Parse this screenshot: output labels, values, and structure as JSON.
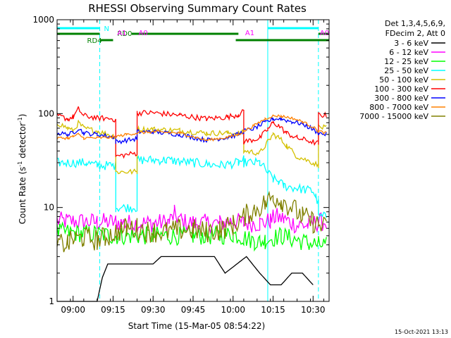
{
  "chart_data": {
    "type": "line",
    "title": "RHESSI Observing Summary Count Rates",
    "xlabel": "Start Time (15-Mar-05 08:54:22)",
    "ylabel_main": "Count Rate (s",
    "ylabel_sup1": "-1",
    "ylabel_mid": " detector",
    "ylabel_sup2": "-1",
    "ylabel_end": ")",
    "y_scale": "log",
    "ylim": [
      1,
      1000
    ],
    "xlim_minutes": [
      -6,
      96
    ],
    "x_ticks": [
      {
        "t": 0,
        "label": "09:00"
      },
      {
        "t": 15,
        "label": "09:15"
      },
      {
        "t": 30,
        "label": "09:30"
      },
      {
        "t": 45,
        "label": "09:45"
      },
      {
        "t": 60,
        "label": "10:00"
      },
      {
        "t": 75,
        "label": "10:15"
      },
      {
        "t": 90,
        "label": "10:30"
      }
    ],
    "y_ticks": [
      {
        "v": 1,
        "label": "1"
      },
      {
        "v": 10,
        "label": "10"
      },
      {
        "v": 100,
        "label": "100"
      },
      {
        "v": 1000,
        "label": "1000"
      }
    ],
    "legend_header": [
      "Det 1,3,4,5,6,9,",
      "FDecim 2, Att 0"
    ],
    "legend_placement": "right",
    "grid": false,
    "series": [
      {
        "name": "3 - 6 keV",
        "color": "#000000",
        "points": [
          [
            -6,
            1
          ],
          [
            9,
            1
          ],
          [
            11,
            1.8
          ],
          [
            13,
            2.5
          ],
          [
            17,
            2.5
          ],
          [
            30,
            2.5
          ],
          [
            33,
            3
          ],
          [
            45,
            3
          ],
          [
            53,
            3
          ],
          [
            57,
            2
          ],
          [
            65,
            3
          ],
          [
            70,
            2
          ],
          [
            74,
            1.5
          ],
          [
            78,
            1.5
          ],
          [
            82,
            2
          ],
          [
            86,
            2
          ],
          [
            90,
            1.5
          ]
        ]
      },
      {
        "name": "6 - 12 keV",
        "color": "#ff00ff",
        "points": [
          [
            -6,
            7.2
          ],
          [
            9,
            7
          ],
          [
            16,
            7
          ],
          [
            20,
            6.8
          ],
          [
            30,
            6.8
          ],
          [
            36,
            7
          ],
          [
            38,
            8.5
          ],
          [
            41,
            7
          ],
          [
            46,
            6.8
          ],
          [
            55,
            6.8
          ],
          [
            60,
            7.2
          ],
          [
            64,
            6.8
          ],
          [
            70,
            6.8
          ],
          [
            74,
            7.2
          ],
          [
            76,
            8
          ],
          [
            79,
            7.5
          ],
          [
            84,
            6.5
          ],
          [
            88,
            6.5
          ],
          [
            92,
            7
          ],
          [
            95,
            7
          ]
        ]
      },
      {
        "name": "12 - 25 keV",
        "color": "#00ff00",
        "points": [
          [
            -6,
            5.5
          ],
          [
            9,
            5.2
          ],
          [
            16,
            5
          ],
          [
            20,
            5
          ],
          [
            30,
            5
          ],
          [
            45,
            5
          ],
          [
            55,
            5
          ],
          [
            60,
            5.2
          ],
          [
            64,
            4.8
          ],
          [
            68,
            4.4
          ],
          [
            70,
            4.3
          ],
          [
            72,
            4.5
          ],
          [
            78,
            5
          ],
          [
            84,
            4.5
          ],
          [
            88,
            4.2
          ],
          [
            92,
            4
          ],
          [
            95,
            4
          ]
        ]
      },
      {
        "name": "25 - 50 keV",
        "color": "#00ffff",
        "points": [
          [
            -6,
            30
          ],
          [
            5,
            30
          ],
          [
            9,
            28
          ],
          [
            15,
            28
          ],
          [
            16,
            28
          ],
          [
            16.01,
            10
          ],
          [
            24,
            10
          ],
          [
            24.01,
            32
          ],
          [
            35,
            32
          ],
          [
            45,
            30
          ],
          [
            55,
            28
          ],
          [
            62,
            30
          ],
          [
            64,
            32
          ],
          [
            64.01,
            30
          ],
          [
            70,
            30
          ],
          [
            75,
            20
          ],
          [
            77,
            19
          ],
          [
            79,
            17
          ],
          [
            84,
            16
          ],
          [
            90,
            15
          ],
          [
            91,
            13
          ],
          [
            92,
            11
          ],
          [
            92.01,
            8
          ],
          [
            95,
            8
          ]
        ]
      },
      {
        "name": "50 - 100 keV",
        "color": "#d4c000",
        "points": [
          [
            -6,
            80
          ],
          [
            -2,
            70
          ],
          [
            0,
            65
          ],
          [
            2,
            80
          ],
          [
            4,
            70
          ],
          [
            9,
            65
          ],
          [
            15,
            58
          ],
          [
            16,
            55
          ],
          [
            16.01,
            24
          ],
          [
            24,
            24
          ],
          [
            24.01,
            68
          ],
          [
            30,
            68
          ],
          [
            40,
            66
          ],
          [
            50,
            62
          ],
          [
            58,
            62
          ],
          [
            62,
            62
          ],
          [
            64,
            63
          ],
          [
            64.01,
            40
          ],
          [
            70,
            38
          ],
          [
            73,
            50
          ],
          [
            75,
            60
          ],
          [
            77,
            56
          ],
          [
            80,
            46
          ],
          [
            84,
            35
          ],
          [
            90,
            30
          ],
          [
            92,
            28
          ],
          [
            92.01,
            72
          ],
          [
            95,
            70
          ]
        ]
      },
      {
        "name": "100 - 300 keV",
        "color": "#ff0000",
        "points": [
          [
            -6,
            95
          ],
          [
            -2,
            88
          ],
          [
            0,
            92
          ],
          [
            2,
            112
          ],
          [
            4,
            95
          ],
          [
            9,
            90
          ],
          [
            15,
            88
          ],
          [
            16,
            82
          ],
          [
            16.01,
            35
          ],
          [
            24,
            38
          ],
          [
            24.01,
            102
          ],
          [
            30,
            102
          ],
          [
            40,
            96
          ],
          [
            50,
            88
          ],
          [
            58,
            92
          ],
          [
            62,
            98
          ],
          [
            64,
            105
          ],
          [
            64.01,
            50
          ],
          [
            70,
            55
          ],
          [
            73,
            68
          ],
          [
            75,
            80
          ],
          [
            77,
            75
          ],
          [
            80,
            62
          ],
          [
            84,
            55
          ],
          [
            90,
            50
          ],
          [
            92,
            48
          ],
          [
            92.01,
            98
          ],
          [
            95,
            95
          ]
        ]
      },
      {
        "name": "300 - 800 keV",
        "color": "#0000ff",
        "points": [
          [
            -6,
            62
          ],
          [
            -2,
            60
          ],
          [
            0,
            62
          ],
          [
            2,
            70
          ],
          [
            4,
            62
          ],
          [
            9,
            60
          ],
          [
            15,
            56
          ],
          [
            16,
            56
          ],
          [
            16.01,
            50
          ],
          [
            24,
            54
          ],
          [
            24.01,
            64
          ],
          [
            30,
            64
          ],
          [
            40,
            60
          ],
          [
            50,
            52
          ],
          [
            58,
            56
          ],
          [
            62,
            60
          ],
          [
            64,
            65
          ],
          [
            68,
            70
          ],
          [
            72,
            80
          ],
          [
            75,
            88
          ],
          [
            78,
            88
          ],
          [
            82,
            82
          ],
          [
            86,
            78
          ],
          [
            90,
            68
          ],
          [
            92,
            62
          ],
          [
            95,
            60
          ]
        ]
      },
      {
        "name": "800 - 7000 keV",
        "color": "#ff8000",
        "points": [
          [
            -6,
            55
          ],
          [
            -2,
            55
          ],
          [
            0,
            57
          ],
          [
            2,
            60
          ],
          [
            4,
            55
          ],
          [
            9,
            55
          ],
          [
            15,
            56
          ],
          [
            20,
            60
          ],
          [
            24,
            62
          ],
          [
            30,
            64
          ],
          [
            40,
            62
          ],
          [
            50,
            52
          ],
          [
            58,
            56
          ],
          [
            62,
            60
          ],
          [
            64,
            65
          ],
          [
            68,
            75
          ],
          [
            72,
            88
          ],
          [
            75,
            95
          ],
          [
            78,
            94
          ],
          [
            82,
            90
          ],
          [
            86,
            82
          ],
          [
            90,
            72
          ],
          [
            92,
            65
          ],
          [
            95,
            62
          ]
        ]
      },
      {
        "name": "7000 - 15000 keV",
        "color": "#808000",
        "points": [
          [
            -6,
            4
          ],
          [
            -2,
            4.2
          ],
          [
            0,
            4.5
          ],
          [
            4,
            4.8
          ],
          [
            9,
            4.5
          ],
          [
            12,
            4.8
          ],
          [
            16,
            5.5
          ],
          [
            20,
            6
          ],
          [
            24,
            6
          ],
          [
            28,
            5.6
          ],
          [
            30,
            5.5
          ],
          [
            35,
            5.5
          ],
          [
            40,
            5.8
          ],
          [
            45,
            5.8
          ],
          [
            50,
            5.5
          ],
          [
            55,
            5.8
          ],
          [
            60,
            6.5
          ],
          [
            64,
            8
          ],
          [
            68,
            9.5
          ],
          [
            72,
            11
          ],
          [
            75,
            13
          ],
          [
            78,
            12
          ],
          [
            82,
            10
          ],
          [
            86,
            8
          ],
          [
            90,
            7
          ],
          [
            92,
            6.5
          ],
          [
            95,
            6
          ]
        ]
      }
    ],
    "status_bars": [
      {
        "name": "N",
        "color": "#00ffff",
        "segments": [
          [
            -6,
            10
          ],
          [
            73,
            92
          ]
        ]
      },
      {
        "name": "RD0",
        "color": "#008000",
        "segments": [
          [
            -6,
            10
          ],
          [
            22,
            62
          ],
          [
            92,
            96
          ]
        ]
      },
      {
        "name": "RD4",
        "color": "#008000",
        "segments": [
          [
            10,
            15
          ],
          [
            61,
            96
          ]
        ]
      }
    ],
    "night_boundaries": [
      -6,
      10,
      73,
      92
    ],
    "attenuator_marks": [
      {
        "t": 16,
        "label": "A1"
      },
      {
        "t": 24,
        "label": "A0"
      },
      {
        "t": 64,
        "label": "A1"
      },
      {
        "t": 92,
        "label": "A0"
      }
    ],
    "timestamp": "15-Oct-2021 13:13"
  }
}
